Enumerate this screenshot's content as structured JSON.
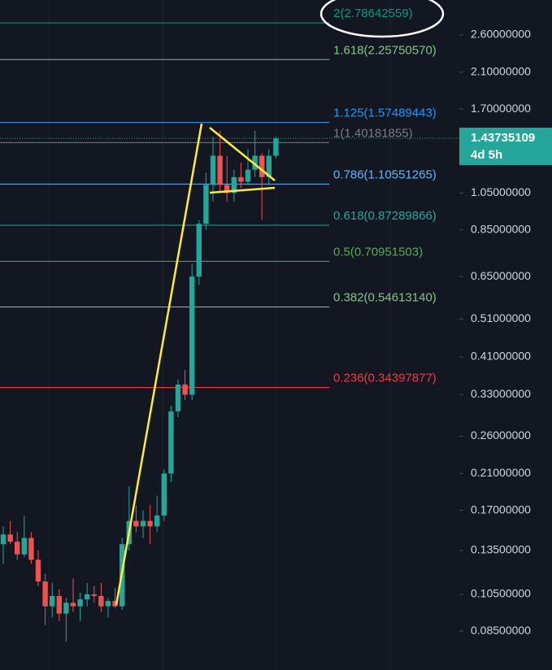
{
  "chart_data": {
    "type": "candlestick",
    "log_scale": true,
    "up_color": "#26a69a",
    "down_color": "#ef5350",
    "ylim": [
      0.068,
      3.178
    ],
    "yticks": [
      {
        "value": 2.6,
        "label": "2.60000000"
      },
      {
        "value": 2.1,
        "label": "2.10000000"
      },
      {
        "value": 1.7,
        "label": "1.70000000"
      },
      {
        "value": 1.05,
        "label": "1.05000000"
      },
      {
        "value": 0.85,
        "label": "0.85000000"
      },
      {
        "value": 0.65,
        "label": "0.65000000"
      },
      {
        "value": 0.51,
        "label": "0.51000000"
      },
      {
        "value": 0.41,
        "label": "0.41000000"
      },
      {
        "value": 0.33,
        "label": "0.33000000"
      },
      {
        "value": 0.26,
        "label": "0.26000000"
      },
      {
        "value": 0.21,
        "label": "0.21000000"
      },
      {
        "value": 0.17,
        "label": "0.17000000"
      },
      {
        "value": 0.135,
        "label": "0.13500000"
      },
      {
        "value": 0.105,
        "label": "0.10500000"
      },
      {
        "value": 0.085,
        "label": "0.08500000"
      }
    ],
    "ohlc": [
      [
        0.14,
        0.155,
        0.125,
        0.148
      ],
      [
        0.148,
        0.16,
        0.14,
        0.142
      ],
      [
        0.142,
        0.15,
        0.128,
        0.132
      ],
      [
        0.132,
        0.165,
        0.13,
        0.145
      ],
      [
        0.145,
        0.15,
        0.125,
        0.128
      ],
      [
        0.128,
        0.135,
        0.11,
        0.113
      ],
      [
        0.113,
        0.118,
        0.088,
        0.098
      ],
      [
        0.098,
        0.112,
        0.092,
        0.104
      ],
      [
        0.104,
        0.108,
        0.09,
        0.094
      ],
      [
        0.094,
        0.103,
        0.08,
        0.1
      ],
      [
        0.1,
        0.115,
        0.095,
        0.098
      ],
      [
        0.098,
        0.106,
        0.09,
        0.102
      ],
      [
        0.102,
        0.112,
        0.098,
        0.105
      ],
      [
        0.105,
        0.11,
        0.1,
        0.104
      ],
      [
        0.104,
        0.112,
        0.095,
        0.098
      ],
      [
        0.098,
        0.103,
        0.092,
        0.101
      ],
      [
        0.101,
        0.109,
        0.097,
        0.098
      ],
      [
        0.098,
        0.145,
        0.096,
        0.14
      ],
      [
        0.14,
        0.195,
        0.135,
        0.16
      ],
      [
        0.16,
        0.175,
        0.15,
        0.155
      ],
      [
        0.155,
        0.17,
        0.145,
        0.16
      ],
      [
        0.16,
        0.175,
        0.14,
        0.155
      ],
      [
        0.155,
        0.185,
        0.15,
        0.165
      ],
      [
        0.165,
        0.215,
        0.16,
        0.21
      ],
      [
        0.21,
        0.31,
        0.2,
        0.3
      ],
      [
        0.3,
        0.36,
        0.29,
        0.35
      ],
      [
        0.35,
        0.38,
        0.32,
        0.33
      ],
      [
        0.33,
        0.7,
        0.32,
        0.65
      ],
      [
        0.65,
        0.9,
        0.62,
        0.88
      ],
      [
        0.88,
        1.18,
        0.85,
        1.1
      ],
      [
        1.1,
        1.45,
        1.0,
        1.3
      ],
      [
        1.3,
        1.5,
        1.05,
        1.1
      ],
      [
        1.1,
        1.3,
        1.0,
        1.05
      ],
      [
        1.05,
        1.2,
        1.0,
        1.15
      ],
      [
        1.15,
        1.25,
        1.08,
        1.12
      ],
      [
        1.12,
        1.35,
        1.1,
        1.2
      ],
      [
        1.2,
        1.5,
        1.15,
        1.3
      ],
      [
        1.3,
        1.32,
        0.9,
        1.15
      ],
      [
        1.15,
        1.35,
        1.1,
        1.3
      ],
      [
        1.3,
        1.45,
        1.28,
        1.437
      ]
    ],
    "fib_levels": [
      {
        "value": 2.78642559,
        "label": "2(2.78642559)",
        "color": "#089981"
      },
      {
        "value": 2.2575057,
        "label": "1.618(2.25750570)",
        "color": "#81c784"
      },
      {
        "value": 1.57489443,
        "label": "1.125(1.57489443)",
        "color": "#2196f3"
      },
      {
        "value": 1.40181855,
        "label": "1(1.40181855)",
        "color": "#787b86"
      },
      {
        "value": 1.10551265,
        "label": "0.786(1.10551265)",
        "color": "#64b5f6"
      },
      {
        "value": 0.87289866,
        "label": "0.618(0.87289866)",
        "color": "#26a69a"
      },
      {
        "value": 0.70951503,
        "label": "0.5(0.70951503)",
        "color": "#4caf50"
      },
      {
        "value": 0.5461314,
        "label": "0.382(0.54613140)",
        "color": "#81c784"
      },
      {
        "value": 0.34397877,
        "label": "0.236(0.34397877)",
        "color": "#f23645"
      }
    ],
    "last_price": {
      "value": 1.43735109,
      "label": "1.43735109"
    },
    "countdown": "4d 5h"
  }
}
